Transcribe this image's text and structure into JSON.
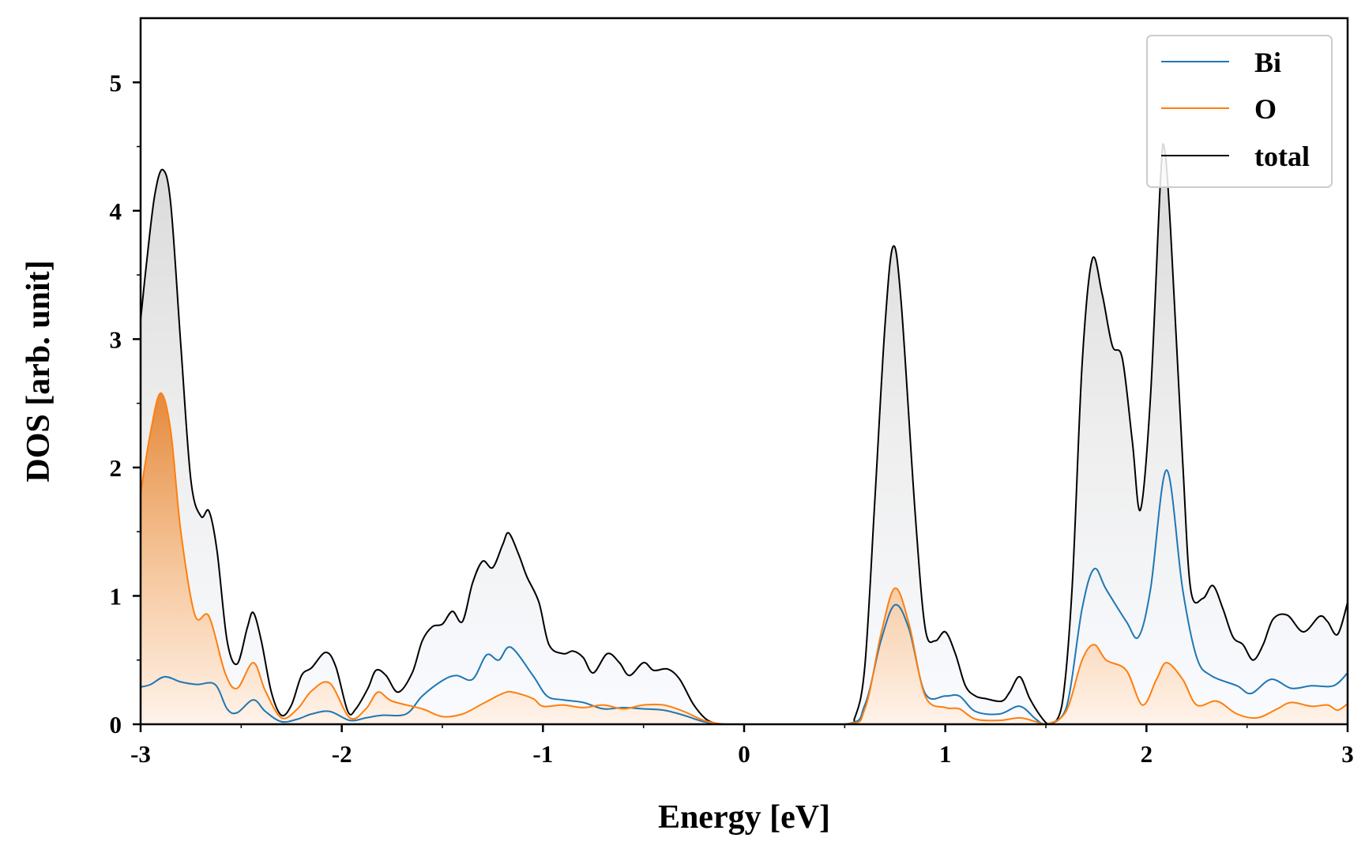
{
  "chart_data": {
    "type": "area",
    "xlabel": "Energy [eV]",
    "ylabel": "DOS [arb. unit]",
    "xlim": [
      -3,
      3
    ],
    "ylim": [
      0,
      5.5
    ],
    "xticks": [
      -3,
      -2,
      -1,
      0,
      1,
      2,
      3
    ],
    "xtick_labels": [
      "-3",
      "-2",
      "-1",
      "0",
      "1",
      "2",
      "3"
    ],
    "yticks": [
      0,
      1,
      2,
      3,
      4,
      5
    ],
    "ytick_labels": [
      "0",
      "1",
      "2",
      "3",
      "4",
      "5"
    ],
    "grid": false,
    "legend_position": "top-right",
    "series": [
      {
        "name": "Bi",
        "color": "#1f77b4",
        "points": [
          [
            -3.0,
            0.29
          ],
          [
            -2.95,
            0.31
          ],
          [
            -2.88,
            0.37
          ],
          [
            -2.8,
            0.33
          ],
          [
            -2.72,
            0.31
          ],
          [
            -2.63,
            0.31
          ],
          [
            -2.57,
            0.12
          ],
          [
            -2.52,
            0.09
          ],
          [
            -2.44,
            0.19
          ],
          [
            -2.38,
            0.1
          ],
          [
            -2.3,
            0.02
          ],
          [
            -2.22,
            0.04
          ],
          [
            -2.15,
            0.08
          ],
          [
            -2.06,
            0.1
          ],
          [
            -1.96,
            0.03
          ],
          [
            -1.88,
            0.05
          ],
          [
            -1.8,
            0.07
          ],
          [
            -1.68,
            0.08
          ],
          [
            -1.6,
            0.22
          ],
          [
            -1.5,
            0.34
          ],
          [
            -1.43,
            0.38
          ],
          [
            -1.35,
            0.35
          ],
          [
            -1.28,
            0.54
          ],
          [
            -1.22,
            0.5
          ],
          [
            -1.16,
            0.6
          ],
          [
            -1.05,
            0.38
          ],
          [
            -0.98,
            0.22
          ],
          [
            -0.9,
            0.19
          ],
          [
            -0.8,
            0.17
          ],
          [
            -0.7,
            0.12
          ],
          [
            -0.6,
            0.13
          ],
          [
            -0.5,
            0.12
          ],
          [
            -0.4,
            0.11
          ],
          [
            -0.3,
            0.07
          ],
          [
            -0.2,
            0.02
          ],
          [
            -0.1,
            0.0
          ],
          [
            0.0,
            0.0
          ],
          [
            0.5,
            0.0
          ],
          [
            0.6,
            0.15
          ],
          [
            0.68,
            0.65
          ],
          [
            0.75,
            0.93
          ],
          [
            0.82,
            0.74
          ],
          [
            0.9,
            0.24
          ],
          [
            1.0,
            0.22
          ],
          [
            1.07,
            0.22
          ],
          [
            1.15,
            0.1
          ],
          [
            1.27,
            0.08
          ],
          [
            1.37,
            0.14
          ],
          [
            1.45,
            0.04
          ],
          [
            1.5,
            0.0
          ],
          [
            1.6,
            0.12
          ],
          [
            1.68,
            0.9
          ],
          [
            1.74,
            1.21
          ],
          [
            1.8,
            1.05
          ],
          [
            1.9,
            0.8
          ],
          [
            1.96,
            0.68
          ],
          [
            2.02,
            1.05
          ],
          [
            2.1,
            1.98
          ],
          [
            2.18,
            1.05
          ],
          [
            2.25,
            0.52
          ],
          [
            2.32,
            0.38
          ],
          [
            2.45,
            0.3
          ],
          [
            2.52,
            0.24
          ],
          [
            2.62,
            0.35
          ],
          [
            2.72,
            0.28
          ],
          [
            2.82,
            0.3
          ],
          [
            2.93,
            0.3
          ],
          [
            3.0,
            0.4
          ]
        ]
      },
      {
        "name": "O",
        "color": "#ff7f0e",
        "points": [
          [
            -3.0,
            1.8
          ],
          [
            -2.95,
            2.28
          ],
          [
            -2.9,
            2.58
          ],
          [
            -2.85,
            2.28
          ],
          [
            -2.8,
            1.5
          ],
          [
            -2.73,
            0.85
          ],
          [
            -2.66,
            0.84
          ],
          [
            -2.58,
            0.4
          ],
          [
            -2.52,
            0.28
          ],
          [
            -2.44,
            0.48
          ],
          [
            -2.38,
            0.26
          ],
          [
            -2.3,
            0.05
          ],
          [
            -2.22,
            0.12
          ],
          [
            -2.15,
            0.26
          ],
          [
            -2.06,
            0.32
          ],
          [
            -1.96,
            0.05
          ],
          [
            -1.88,
            0.12
          ],
          [
            -1.82,
            0.25
          ],
          [
            -1.75,
            0.18
          ],
          [
            -1.6,
            0.12
          ],
          [
            -1.5,
            0.06
          ],
          [
            -1.4,
            0.08
          ],
          [
            -1.3,
            0.16
          ],
          [
            -1.2,
            0.24
          ],
          [
            -1.15,
            0.25
          ],
          [
            -1.05,
            0.2
          ],
          [
            -1.0,
            0.14
          ],
          [
            -0.9,
            0.15
          ],
          [
            -0.8,
            0.13
          ],
          [
            -0.7,
            0.15
          ],
          [
            -0.6,
            0.12
          ],
          [
            -0.5,
            0.15
          ],
          [
            -0.4,
            0.15
          ],
          [
            -0.3,
            0.1
          ],
          [
            -0.2,
            0.03
          ],
          [
            -0.1,
            0.0
          ],
          [
            0.0,
            0.0
          ],
          [
            0.5,
            0.0
          ],
          [
            0.6,
            0.12
          ],
          [
            0.68,
            0.7
          ],
          [
            0.75,
            1.06
          ],
          [
            0.82,
            0.78
          ],
          [
            0.9,
            0.22
          ],
          [
            1.0,
            0.13
          ],
          [
            1.07,
            0.12
          ],
          [
            1.15,
            0.04
          ],
          [
            1.27,
            0.03
          ],
          [
            1.37,
            0.05
          ],
          [
            1.45,
            0.02
          ],
          [
            1.5,
            0.0
          ],
          [
            1.6,
            0.1
          ],
          [
            1.68,
            0.5
          ],
          [
            1.74,
            0.62
          ],
          [
            1.8,
            0.5
          ],
          [
            1.9,
            0.42
          ],
          [
            1.98,
            0.15
          ],
          [
            2.05,
            0.35
          ],
          [
            2.1,
            0.48
          ],
          [
            2.18,
            0.35
          ],
          [
            2.25,
            0.15
          ],
          [
            2.35,
            0.18
          ],
          [
            2.45,
            0.08
          ],
          [
            2.55,
            0.05
          ],
          [
            2.65,
            0.12
          ],
          [
            2.72,
            0.17
          ],
          [
            2.82,
            0.14
          ],
          [
            2.9,
            0.15
          ],
          [
            2.95,
            0.11
          ],
          [
            3.0,
            0.16
          ]
        ]
      },
      {
        "name": "total",
        "color": "#000000",
        "points": [
          [
            -3.0,
            3.15
          ],
          [
            -2.97,
            3.6
          ],
          [
            -2.93,
            4.12
          ],
          [
            -2.89,
            4.32
          ],
          [
            -2.85,
            4.05
          ],
          [
            -2.8,
            2.95
          ],
          [
            -2.75,
            1.9
          ],
          [
            -2.7,
            1.62
          ],
          [
            -2.66,
            1.66
          ],
          [
            -2.62,
            1.35
          ],
          [
            -2.57,
            0.65
          ],
          [
            -2.52,
            0.47
          ],
          [
            -2.47,
            0.75
          ],
          [
            -2.44,
            0.87
          ],
          [
            -2.4,
            0.65
          ],
          [
            -2.35,
            0.25
          ],
          [
            -2.3,
            0.07
          ],
          [
            -2.25,
            0.15
          ],
          [
            -2.2,
            0.38
          ],
          [
            -2.15,
            0.44
          ],
          [
            -2.08,
            0.56
          ],
          [
            -2.03,
            0.45
          ],
          [
            -1.97,
            0.1
          ],
          [
            -1.93,
            0.12
          ],
          [
            -1.87,
            0.28
          ],
          [
            -1.83,
            0.42
          ],
          [
            -1.78,
            0.38
          ],
          [
            -1.72,
            0.25
          ],
          [
            -1.65,
            0.4
          ],
          [
            -1.6,
            0.65
          ],
          [
            -1.55,
            0.76
          ],
          [
            -1.5,
            0.78
          ],
          [
            -1.45,
            0.88
          ],
          [
            -1.4,
            0.8
          ],
          [
            -1.35,
            1.1
          ],
          [
            -1.3,
            1.27
          ],
          [
            -1.25,
            1.22
          ],
          [
            -1.2,
            1.4
          ],
          [
            -1.17,
            1.49
          ],
          [
            -1.12,
            1.32
          ],
          [
            -1.08,
            1.15
          ],
          [
            -1.02,
            0.95
          ],
          [
            -0.97,
            0.62
          ],
          [
            -0.9,
            0.55
          ],
          [
            -0.85,
            0.57
          ],
          [
            -0.8,
            0.52
          ],
          [
            -0.75,
            0.4
          ],
          [
            -0.68,
            0.55
          ],
          [
            -0.62,
            0.48
          ],
          [
            -0.57,
            0.38
          ],
          [
            -0.5,
            0.48
          ],
          [
            -0.45,
            0.42
          ],
          [
            -0.38,
            0.43
          ],
          [
            -0.32,
            0.35
          ],
          [
            -0.25,
            0.15
          ],
          [
            -0.18,
            0.03
          ],
          [
            -0.1,
            0.0
          ],
          [
            0.0,
            0.0
          ],
          [
            0.5,
            0.0
          ],
          [
            0.55,
            0.05
          ],
          [
            0.6,
            0.45
          ],
          [
            0.65,
            1.75
          ],
          [
            0.7,
            3.1
          ],
          [
            0.74,
            3.72
          ],
          [
            0.78,
            3.3
          ],
          [
            0.85,
            1.65
          ],
          [
            0.9,
            0.75
          ],
          [
            0.95,
            0.65
          ],
          [
            1.0,
            0.72
          ],
          [
            1.05,
            0.55
          ],
          [
            1.1,
            0.3
          ],
          [
            1.15,
            0.22
          ],
          [
            1.2,
            0.2
          ],
          [
            1.28,
            0.18
          ],
          [
            1.32,
            0.25
          ],
          [
            1.37,
            0.37
          ],
          [
            1.42,
            0.2
          ],
          [
            1.48,
            0.05
          ],
          [
            1.52,
            0.0
          ],
          [
            1.58,
            0.15
          ],
          [
            1.63,
            1.05
          ],
          [
            1.68,
            2.8
          ],
          [
            1.73,
            3.62
          ],
          [
            1.78,
            3.35
          ],
          [
            1.83,
            2.95
          ],
          [
            1.88,
            2.85
          ],
          [
            1.93,
            2.2
          ],
          [
            1.97,
            1.67
          ],
          [
            2.02,
            2.55
          ],
          [
            2.07,
            4.25
          ],
          [
            2.09,
            4.48
          ],
          [
            2.12,
            3.85
          ],
          [
            2.18,
            2.05
          ],
          [
            2.22,
            1.05
          ],
          [
            2.28,
            0.98
          ],
          [
            2.33,
            1.08
          ],
          [
            2.38,
            0.9
          ],
          [
            2.43,
            0.68
          ],
          [
            2.48,
            0.62
          ],
          [
            2.53,
            0.5
          ],
          [
            2.58,
            0.62
          ],
          [
            2.63,
            0.82
          ],
          [
            2.7,
            0.85
          ],
          [
            2.78,
            0.72
          ],
          [
            2.86,
            0.84
          ],
          [
            2.9,
            0.8
          ],
          [
            2.95,
            0.7
          ],
          [
            3.0,
            0.95
          ]
        ]
      }
    ]
  }
}
